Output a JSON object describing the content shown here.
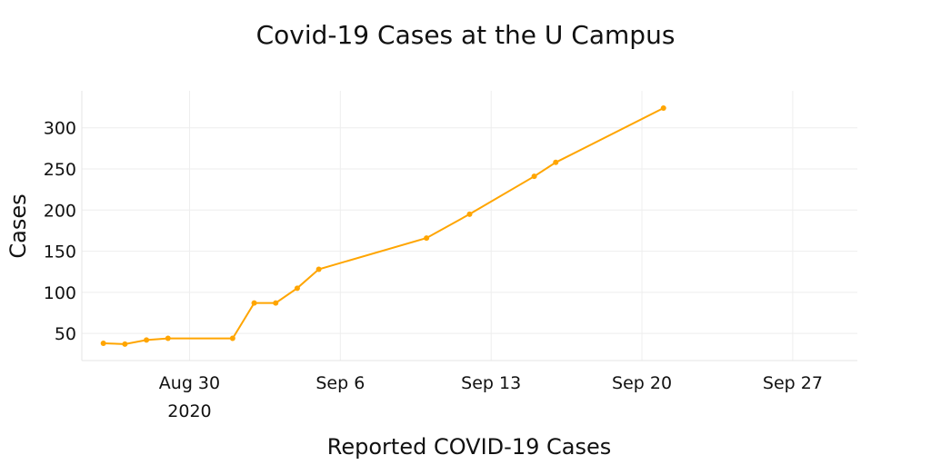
{
  "chart_data": {
    "type": "line",
    "title": "Covid-19 Cases at the U Campus",
    "xlabel": "Reported COVID-19 Cases",
    "ylabel": "Cases",
    "x_tick_labels": [
      "Aug 30",
      "Sep 6",
      "Sep 13",
      "Sep 20",
      "Sep 27"
    ],
    "x_tick_values": [
      "2020-08-30",
      "2020-09-06",
      "2020-09-13",
      "2020-09-20",
      "2020-09-27"
    ],
    "x_year_label": "2020",
    "y_ticks": [
      50,
      100,
      150,
      200,
      250,
      300
    ],
    "xlim": [
      "2020-08-25",
      "2020-09-30"
    ],
    "ylim": [
      17,
      345
    ],
    "grid": true,
    "line_color": "#FFA500",
    "series": [
      {
        "x": [
          "2020-08-26",
          "2020-08-27",
          "2020-08-28",
          "2020-08-29",
          "2020-09-01",
          "2020-09-02",
          "2020-09-03",
          "2020-09-04",
          "2020-09-05",
          "2020-09-10",
          "2020-09-12",
          "2020-09-15",
          "2020-09-16",
          "2020-09-21"
        ],
        "y": [
          38,
          37,
          42,
          44,
          44,
          87,
          87,
          105,
          128,
          166,
          195,
          241,
          258,
          324
        ]
      }
    ]
  }
}
